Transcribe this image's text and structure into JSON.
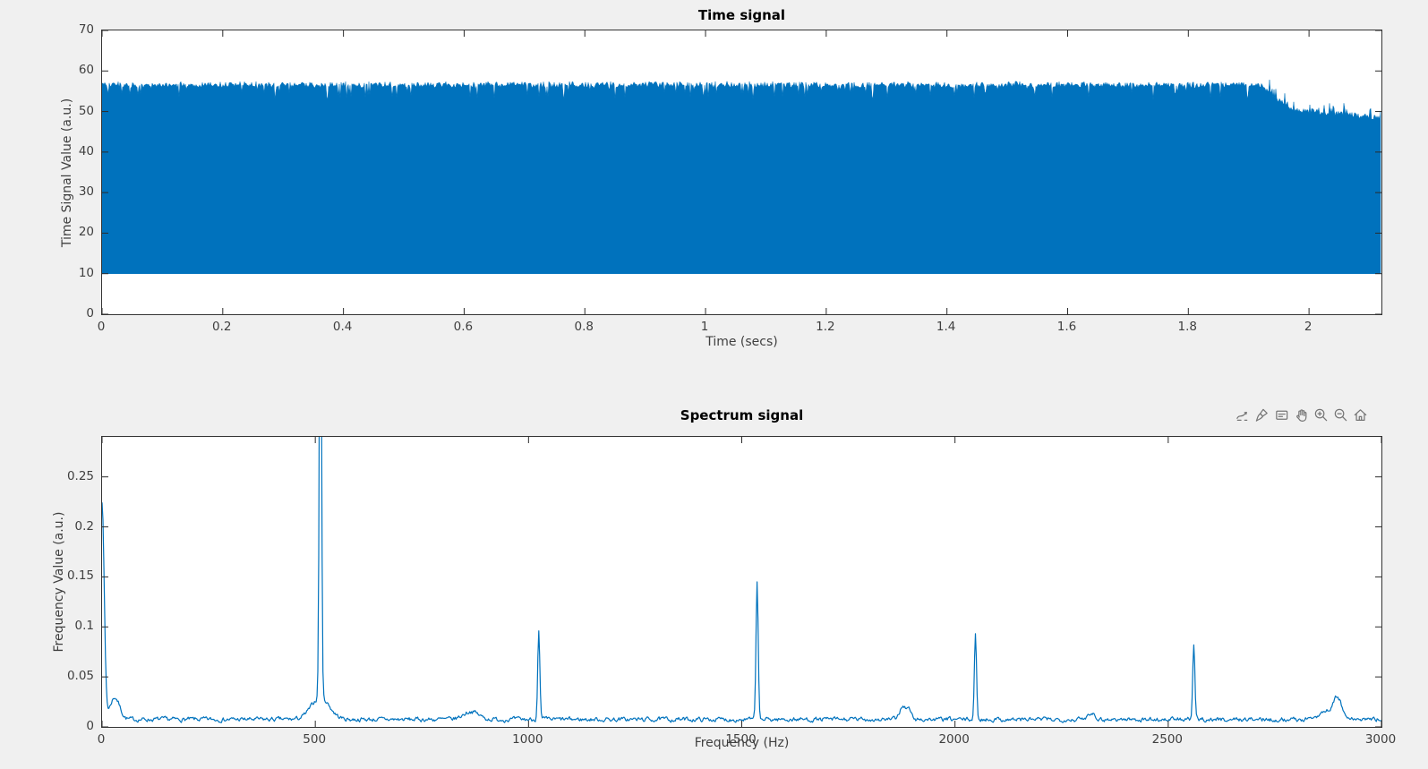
{
  "window": {
    "background": "#f0f0f0"
  },
  "palette": {
    "line": "#0072BD",
    "axes_bg": "#ffffff",
    "axis": "#2b2b2b",
    "tick_label": "#3f3f3f",
    "title": "#000000",
    "toolbar_icon": "#757575"
  },
  "toolbar": {
    "icons": [
      "export-icon",
      "brush-icon",
      "datatips-icon",
      "pan-icon",
      "zoom-in-icon",
      "zoom-out-icon",
      "home-icon"
    ]
  },
  "chart_data": [
    {
      "type": "area",
      "title": "Time signal",
      "xlabel": "Time (secs)",
      "ylabel": "Time Signal Value (a.u.)",
      "xlim": [
        0,
        2.12
      ],
      "ylim": [
        0,
        70
      ],
      "xticks": [
        "0",
        "0.2",
        "0.4",
        "0.6",
        "0.8",
        "1",
        "1.2",
        "1.4",
        "1.6",
        "1.8",
        "2"
      ],
      "yticks": [
        "0",
        "10",
        "20",
        "30",
        "40",
        "50",
        "60",
        "70"
      ],
      "grid": false,
      "legend": null,
      "series": [
        {
          "name": "time signal (dense oscillation, solid fill)",
          "color": "#0072BD",
          "baseline": 10,
          "envelope_top": [
            [
              0,
              57
            ],
            [
              1.92,
              57
            ],
            [
              1.97,
              50.5
            ],
            [
              2.05,
              49.5
            ],
            [
              2.12,
              48.3
            ]
          ],
          "top_noise": 1.5,
          "deep_notch": 4.2
        }
      ]
    },
    {
      "type": "line",
      "title": "Spectrum signal",
      "xlabel": "Frequency (Hz)",
      "ylabel": "Frequency Value (a.u.)",
      "xlim": [
        0,
        3000
      ],
      "ylim": [
        0,
        0.29
      ],
      "xticks": [
        "0",
        "500",
        "1000",
        "1500",
        "2000",
        "2500",
        "3000"
      ],
      "yticks": [
        "0",
        "0.05",
        "0.1",
        "0.15",
        "0.2",
        "0.25"
      ],
      "grid": false,
      "legend": null,
      "line_color": "#0072BD",
      "baseline": 0.0075,
      "noise": 0.004,
      "peaks": [
        {
          "freq": 0,
          "height": 0.218,
          "width": 7,
          "note": "DC spike ~0.225"
        },
        {
          "freq": 30,
          "height": 0.022,
          "width": 16,
          "note": "low-freq shoulder"
        },
        {
          "freq": 512,
          "height": 0.52,
          "width": 3.5,
          "note": "fundamental, clipped above ylim 0.29"
        },
        {
          "freq": 512,
          "height": 0.022,
          "width": 30,
          "note": "broad base of fundamental"
        },
        {
          "freq": 865,
          "height": 0.008,
          "width": 25
        },
        {
          "freq": 1024,
          "height": 0.088,
          "width": 3.5,
          "note": "2nd harmonic ~0.097"
        },
        {
          "freq": 1536,
          "height": 0.139,
          "width": 3.5,
          "note": "3rd harmonic ~0.147"
        },
        {
          "freq": 1878,
          "height": 0.014,
          "width": 10
        },
        {
          "freq": 1893,
          "height": 0.009,
          "width": 7
        },
        {
          "freq": 2048,
          "height": 0.085,
          "width": 3.5,
          "note": "4th harmonic ~0.093"
        },
        {
          "freq": 2320,
          "height": 0.007,
          "width": 12
        },
        {
          "freq": 2560,
          "height": 0.074,
          "width": 3.5,
          "note": "5th harmonic ~0.082"
        },
        {
          "freq": 2870,
          "height": 0.008,
          "width": 25
        },
        {
          "freq": 2897,
          "height": 0.02,
          "width": 14,
          "note": "broad bump near 2900 ~0.03"
        }
      ]
    }
  ]
}
